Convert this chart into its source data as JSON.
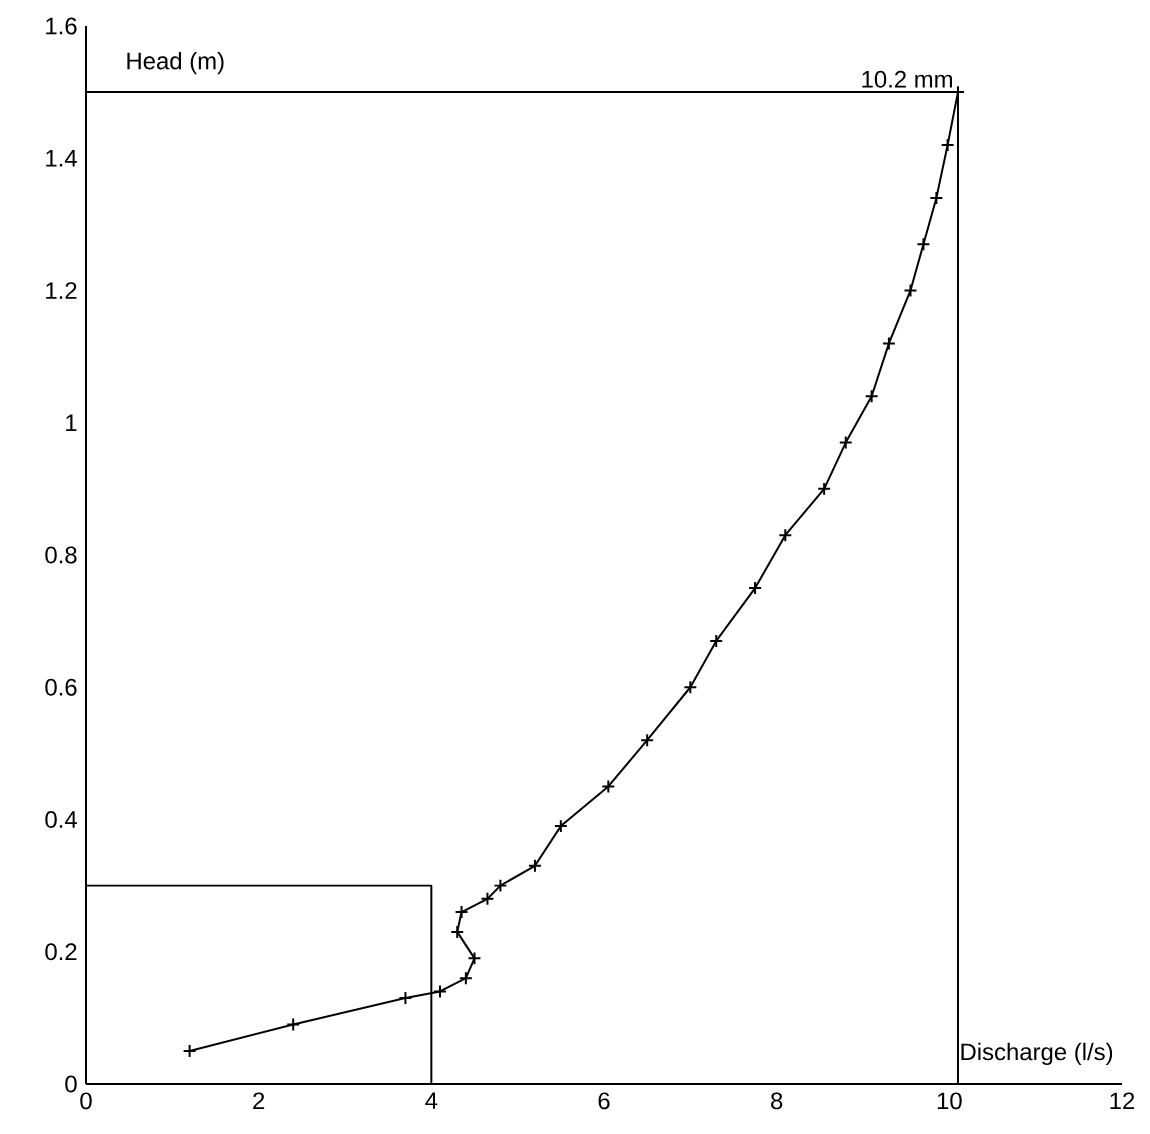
{
  "chart_data": {
    "type": "line",
    "xlabel": "Discharge (l/s)",
    "ylabel": "Head (m)",
    "xlim": [
      0,
      12
    ],
    "ylim": [
      0,
      1.6
    ],
    "xticks": [
      0,
      2,
      4,
      6,
      8,
      10,
      12
    ],
    "yticks": [
      0,
      0.2,
      0.4,
      0.6,
      0.8,
      1,
      1.2,
      1.4,
      1.6
    ],
    "grid": false,
    "line_style": "solid",
    "annotations": [
      {
        "text": "10.2 mm",
        "x": 10.1,
        "y": 1.5
      }
    ],
    "series": [
      {
        "color": "#000000",
        "marker": "cross",
        "x": [
          1.2,
          2.4,
          3.7,
          4.1,
          4.4,
          4.5,
          4.3,
          4.35,
          4.65,
          4.8,
          5.2,
          5.5,
          6.05,
          6.5,
          7.0,
          7.3,
          7.75,
          8.1,
          8.55,
          8.8,
          9.1,
          9.3,
          9.55,
          9.7,
          9.85,
          9.98,
          10.1
        ],
        "values": [
          0.05,
          0.09,
          0.13,
          0.14,
          0.16,
          0.19,
          0.23,
          0.26,
          0.28,
          0.3,
          0.33,
          0.39,
          0.45,
          0.52,
          0.6,
          0.67,
          0.75,
          0.83,
          0.9,
          0.97,
          1.04,
          1.12,
          1.2,
          1.27,
          1.34,
          1.42,
          1.5
        ]
      },
      {
        "color": "#000000",
        "marker": "none",
        "x": [
          0,
          4,
          4
        ],
        "values": [
          0.3,
          0.3,
          0
        ]
      },
      {
        "color": "#000000",
        "marker": "none",
        "x": [
          0,
          10.1,
          10.1
        ],
        "values": [
          1.5,
          1.5,
          0
        ]
      }
    ]
  }
}
